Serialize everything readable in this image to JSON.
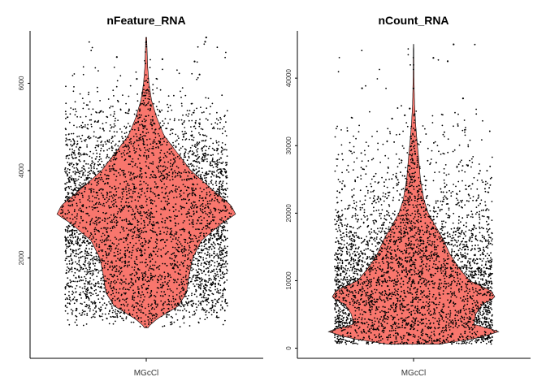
{
  "colors": {
    "violin_fill": "#F8766D",
    "violin_stroke": "#000000",
    "point": "#000000",
    "axis": "#000000"
  },
  "chart_data": [
    {
      "type": "violin",
      "title": "nFeature_RNA",
      "xlabel": "",
      "ylabel": "",
      "categories": [
        "MGcCl"
      ],
      "y_ticks": [
        2000,
        4000,
        6000
      ],
      "y_tick_labels": [
        "2000",
        "4000",
        "6000"
      ],
      "ylim": [
        -300,
        7200
      ],
      "summary": {
        "min": 400,
        "max": 7050,
        "median": 2900,
        "n_points": 6000
      },
      "density_profile": {
        "y": [
          420,
          600,
          900,
          1200,
          1600,
          2000,
          2400,
          2800,
          3000,
          3200,
          3600,
          4000,
          4400,
          4800,
          5200,
          5600,
          6000,
          6400,
          7000
        ],
        "width": [
          0.02,
          0.12,
          0.36,
          0.45,
          0.48,
          0.52,
          0.62,
          0.85,
          1.0,
          0.95,
          0.72,
          0.5,
          0.35,
          0.2,
          0.12,
          0.06,
          0.03,
          0.015,
          0.005
        ]
      },
      "outliers": [
        7050,
        6950,
        6600,
        6550,
        6500,
        6200,
        6100
      ]
    },
    {
      "type": "violin",
      "title": "nCount_RNA",
      "xlabel": "",
      "ylabel": "",
      "categories": [
        "MGcCl"
      ],
      "y_ticks": [
        0,
        10000,
        20000,
        30000,
        40000
      ],
      "y_tick_labels": [
        "0",
        "10000",
        "20000",
        "30000",
        "40000"
      ],
      "ylim": [
        -1500,
        47000
      ],
      "summary": {
        "min": 600,
        "max": 45000,
        "median": 6500,
        "n_points": 6000
      },
      "density_profile": {
        "y": [
          600,
          1500,
          2500,
          3500,
          5000,
          6500,
          7500,
          8500,
          10000,
          12000,
          14000,
          16000,
          18000,
          20000,
          22000,
          25000,
          28000,
          30000,
          33000,
          36000,
          40000,
          45000
        ],
        "width": [
          0.3,
          0.75,
          1.0,
          0.7,
          0.72,
          0.8,
          0.95,
          0.9,
          0.65,
          0.52,
          0.42,
          0.35,
          0.26,
          0.17,
          0.12,
          0.08,
          0.06,
          0.045,
          0.025,
          0.012,
          0.005,
          0.002
        ]
      },
      "outliers": [
        45000,
        43000,
        42500,
        38500,
        37000,
        35500,
        34500,
        34000
      ]
    }
  ]
}
